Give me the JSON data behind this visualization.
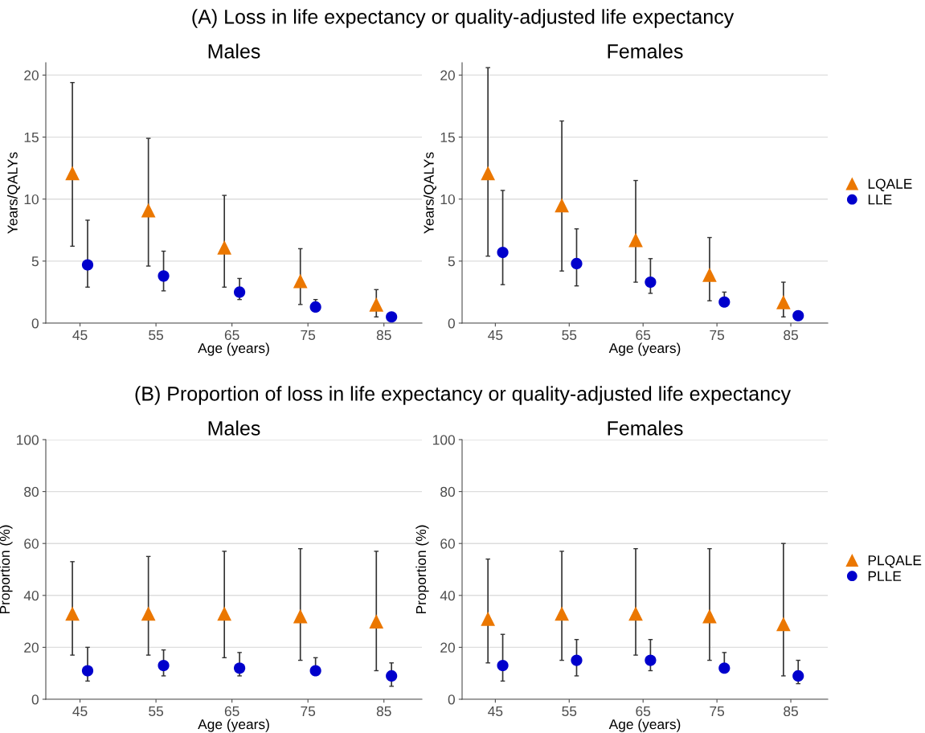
{
  "chart_data": [
    {
      "type": "scatter",
      "title": "Males",
      "annotations": [
        "(A) Loss in life expectancy or quality-adjusted life expectancy"
      ],
      "xlabel": "Age (years)",
      "ylabel": "Years/QALYs",
      "xlim": [
        40.5,
        90
      ],
      "xticks": [
        45,
        55,
        65,
        75,
        85
      ],
      "ylim": [
        0,
        21
      ],
      "yticks": [
        0,
        5,
        10,
        15,
        20
      ],
      "grid": "y",
      "legend": "right",
      "series": [
        {
          "name": "LQALE",
          "color": "#eb7700",
          "marker": "triangle",
          "x": [
            44,
            54,
            64,
            74,
            84
          ],
          "values": [
            12.1,
            9.1,
            6.1,
            3.4,
            1.5
          ],
          "errors": [
            [
              6.2,
              19.4
            ],
            [
              4.6,
              14.9
            ],
            [
              2.9,
              10.3
            ],
            [
              1.5,
              6.0
            ],
            [
              0.5,
              2.7
            ]
          ]
        },
        {
          "name": "LLE",
          "color": "#0000cc",
          "marker": "circle",
          "x": [
            46,
            56,
            66,
            76,
            86
          ],
          "values": [
            4.7,
            3.8,
            2.5,
            1.3,
            0.5
          ],
          "errors": [
            [
              2.9,
              8.3
            ],
            [
              2.6,
              5.8
            ],
            [
              1.9,
              3.6
            ],
            [
              1.3,
              1.9
            ],
            null
          ]
        }
      ]
    },
    {
      "type": "scatter",
      "title": "Females",
      "xlabel": "Age (years)",
      "ylabel": "Years/QALYs",
      "xlim": [
        40.5,
        90
      ],
      "xticks": [
        45,
        55,
        65,
        75,
        85
      ],
      "ylim": [
        0,
        21
      ],
      "yticks": [
        0,
        5,
        10,
        15,
        20
      ],
      "grid": "y",
      "series": [
        {
          "color": "#eb7700",
          "marker": "triangle",
          "x": [
            44,
            54,
            64,
            74,
            84
          ],
          "values": [
            12.1,
            9.5,
            6.7,
            3.9,
            1.7
          ],
          "errors": [
            [
              5.4,
              20.6
            ],
            [
              4.2,
              16.3
            ],
            [
              3.3,
              11.5
            ],
            [
              1.8,
              6.9
            ],
            [
              0.5,
              3.3
            ]
          ]
        },
        {
          "color": "#0000cc",
          "marker": "circle",
          "x": [
            46,
            56,
            66,
            76,
            86
          ],
          "values": [
            5.7,
            4.8,
            3.3,
            1.7,
            0.6
          ],
          "errors": [
            [
              3.1,
              10.7
            ],
            [
              3.0,
              7.6
            ],
            [
              2.4,
              5.2
            ],
            [
              1.7,
              2.5
            ],
            null
          ]
        }
      ]
    },
    {
      "type": "scatter",
      "title": "Males",
      "annotations": [
        "(B) Proportion of loss in life expectancy or quality-adjusted life expectancy"
      ],
      "xlabel": "Age (years)",
      "ylabel": "Proportion (%)",
      "xlim": [
        40.5,
        90
      ],
      "xticks": [
        45,
        55,
        65,
        75,
        85
      ],
      "ylim": [
        0,
        100
      ],
      "yticks": [
        0,
        20,
        40,
        60,
        80,
        100
      ],
      "grid": "y",
      "legend": "right",
      "series": [
        {
          "name": "PLQALE",
          "color": "#eb7700",
          "marker": "triangle",
          "x": [
            44,
            54,
            64,
            74,
            84
          ],
          "values": [
            33,
            33,
            33,
            32,
            30
          ],
          "errors": [
            [
              17,
              53
            ],
            [
              17,
              55
            ],
            [
              16,
              57
            ],
            [
              15,
              58
            ],
            [
              11,
              57
            ]
          ]
        },
        {
          "name": "PLLE",
          "color": "#0000cc",
          "marker": "circle",
          "x": [
            46,
            56,
            66,
            76,
            86
          ],
          "values": [
            11,
            13,
            12,
            11,
            9
          ],
          "errors": [
            [
              7,
              20
            ],
            [
              9,
              19
            ],
            [
              9,
              18
            ],
            [
              11,
              16
            ],
            [
              5,
              14
            ]
          ]
        }
      ]
    },
    {
      "type": "scatter",
      "title": "Females",
      "xlabel": "Age (years)",
      "ylabel": "Proportion (%)",
      "xlim": [
        40.5,
        90
      ],
      "xticks": [
        45,
        55,
        65,
        75,
        85
      ],
      "ylim": [
        0,
        100
      ],
      "yticks": [
        0,
        20,
        40,
        60,
        80,
        100
      ],
      "grid": "y",
      "series": [
        {
          "color": "#eb7700",
          "marker": "triangle",
          "x": [
            44,
            54,
            64,
            74,
            84
          ],
          "values": [
            31,
            33,
            33,
            32,
            29
          ],
          "errors": [
            [
              14,
              54
            ],
            [
              15,
              57
            ],
            [
              17,
              58
            ],
            [
              15,
              58
            ],
            [
              9,
              60
            ]
          ]
        },
        {
          "color": "#0000cc",
          "marker": "circle",
          "x": [
            46,
            56,
            66,
            76,
            86
          ],
          "values": [
            13,
            15,
            15,
            12,
            9
          ],
          "errors": [
            [
              7,
              25
            ],
            [
              9,
              23
            ],
            [
              11,
              23
            ],
            [
              12,
              18
            ],
            [
              6,
              15
            ]
          ]
        }
      ]
    }
  ]
}
